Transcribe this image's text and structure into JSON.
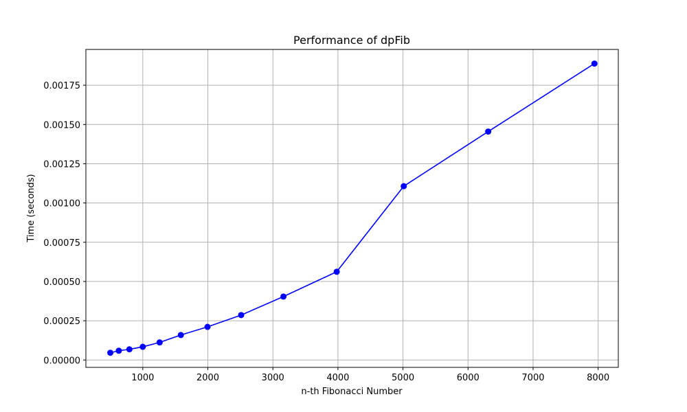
{
  "chart_data": {
    "type": "line",
    "title": "Performance of dpFib",
    "xlabel": "n-th Fibonacci Number",
    "ylabel": "Time (seconds)",
    "xlim": [
      125,
      8310
    ],
    "ylim": [
      -4.7e-05,
      0.001978
    ],
    "xticks": [
      1000,
      2000,
      3000,
      4000,
      5000,
      6000,
      7000,
      8000
    ],
    "xtick_labels": [
      "1000",
      "2000",
      "3000",
      "4000",
      "5000",
      "6000",
      "7000",
      "8000"
    ],
    "yticks": [
      0.0,
      0.00025,
      0.0005,
      0.00075,
      0.001,
      0.00125,
      0.0015,
      0.00175
    ],
    "ytick_labels": [
      "0.00000",
      "0.00025",
      "0.00050",
      "0.00075",
      "0.00100",
      "0.00125",
      "0.00150",
      "0.00175"
    ],
    "grid": true,
    "marker": "circle",
    "color": "#0000ff",
    "series": [
      {
        "x": [
          501,
          631,
          794,
          1000,
          1259,
          1585,
          1995,
          2512,
          3162,
          3981,
          5012,
          6310,
          7943
        ],
        "y": [
          4.6e-05,
          5.9e-05,
          6.8e-05,
          8.4e-05,
          0.000112,
          0.000159,
          0.000211,
          0.000286,
          0.000404,
          0.000562,
          0.001107,
          0.001455,
          0.001888
        ]
      }
    ]
  }
}
